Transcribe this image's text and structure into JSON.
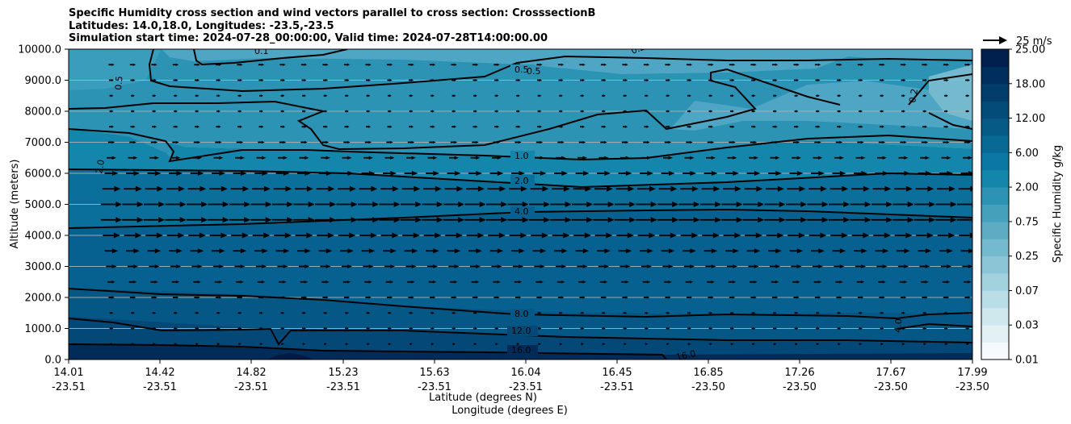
{
  "chart_data": {
    "type": "contour",
    "title_lines": [
      "Specific Humidity cross section and wind vectors parallel to cross section: CrosssectionB",
      "Latitudes: 14.0,18.0, Longitudes: -23.5,-23.5",
      "Simulation start time: 2024-07-28_00:00:00, Valid time: 2024-07-28T14:00:00.00"
    ],
    "ylabel": "Altitude (meters)",
    "xlabel_lat": "Latitude (degrees N)",
    "xlabel_lon": "Longitude (degrees E)",
    "colorbar_label": "Specific Humidity g/kg",
    "ylim": [
      0,
      10000
    ],
    "y_ticks": [
      "0.0",
      "1000.0",
      "2000.0",
      "3000.0",
      "4000.0",
      "5000.0",
      "6000.0",
      "7000.0",
      "8000.0",
      "9000.0",
      "10000.0"
    ],
    "x_ticks_lat": [
      "14.01",
      "14.42",
      "14.82",
      "15.23",
      "15.63",
      "16.04",
      "16.45",
      "16.85",
      "17.26",
      "17.67",
      "17.99"
    ],
    "x_ticks_lon": [
      "-23.51",
      "-23.51",
      "-23.51",
      "-23.51",
      "-23.51",
      "-23.51",
      "-23.51",
      "-23.50",
      "-23.50",
      "-23.50",
      "-23.50"
    ],
    "colorbar_levels": [
      0.01,
      0.02,
      0.03,
      0.05,
      0.07,
      0.1,
      0.25,
      0.5,
      0.75,
      1.0,
      2.0,
      4.0,
      6.0,
      8.0,
      12.0,
      16.0,
      18.0,
      20.0,
      25.0
    ],
    "colorbar_ticks": [
      "0.01",
      "0.03",
      "0.07",
      "0.25",
      "0.75",
      "2.00",
      "6.00",
      "12.00",
      "18.00",
      "25.00"
    ],
    "colorbar_colors": [
      "#f5fbfc",
      "#e3f1f4",
      "#cfe8ee",
      "#b9dee7",
      "#a3d2df",
      "#8cc6d6",
      "#74b9cd",
      "#5dacc4",
      "#45a0bc",
      "#2c93b4",
      "#1486ab",
      "#0b78a3",
      "#076994",
      "#055b86",
      "#034c79",
      "#023d6b",
      "#012f5d",
      "#01204e"
    ],
    "contour_labels": [
      "0.1",
      "0.5",
      "0.5",
      "0.5",
      "0.2",
      "0.2",
      "1.0",
      "2.0",
      "2.0",
      "4.0",
      "4.0",
      "8.0",
      "12.0",
      "16.0",
      "16.0"
    ],
    "wind_reference": "25 m/s",
    "wind_direction": "parallel to cross section, from 14.0N toward 18.0N",
    "wind_speed_profile": [
      {
        "altitude": 0,
        "speed": 2
      },
      {
        "altitude": 500,
        "speed": 3
      },
      {
        "altitude": 1000,
        "speed": 4
      },
      {
        "altitude": 1500,
        "speed": 4
      },
      {
        "altitude": 2000,
        "speed": 6
      },
      {
        "altitude": 2500,
        "speed": 8
      },
      {
        "altitude": 3000,
        "speed": 11
      },
      {
        "altitude": 3500,
        "speed": 14
      },
      {
        "altitude": 4000,
        "speed": 18
      },
      {
        "altitude": 4500,
        "speed": 22
      },
      {
        "altitude": 5000,
        "speed": 22
      },
      {
        "altitude": 5500,
        "speed": 19
      },
      {
        "altitude": 6000,
        "speed": 14
      },
      {
        "altitude": 6500,
        "speed": 10
      },
      {
        "altitude": 7000,
        "speed": 7
      },
      {
        "altitude": 7500,
        "speed": 5
      },
      {
        "altitude": 8000,
        "speed": 4
      },
      {
        "altitude": 8500,
        "speed": 4
      },
      {
        "altitude": 9000,
        "speed": 5
      },
      {
        "altitude": 9500,
        "speed": 6
      },
      {
        "altitude": 10000,
        "speed": 6
      }
    ],
    "humidity_bands": [
      {
        "from": 0,
        "to": 500,
        "level": "12.0-16.0"
      },
      {
        "from": 500,
        "to": 1000,
        "level": "8.0-12.0"
      },
      {
        "from": 1000,
        "to": 2000,
        "level": "6.0-8.0"
      },
      {
        "from": 2000,
        "to": 4500,
        "level": "4.0-6.0"
      },
      {
        "from": 4500,
        "to": 5700,
        "level": "2.0-4.0"
      },
      {
        "from": 5700,
        "to": 6700,
        "level": "1.0-2.0"
      },
      {
        "from": 6700,
        "to": 9000,
        "level": "0.5-1.0"
      },
      {
        "from": 9000,
        "to": 10000,
        "level": "0.2-0.5"
      }
    ],
    "grid": "horizontal lines at y ticks",
    "legend": "colorbar right"
  }
}
